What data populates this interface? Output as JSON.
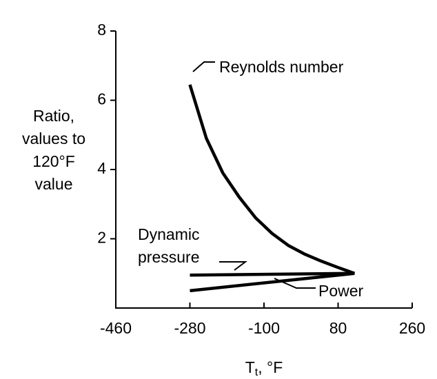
{
  "chart_data": {
    "type": "line",
    "y_label": [
      "Ratio,",
      "values to",
      "120°F",
      "value"
    ],
    "x_label": [
      "T",
      "t",
      ", °F"
    ],
    "xlim": [
      -460,
      260
    ],
    "xticks": [
      -460,
      -280,
      -100,
      80,
      260
    ],
    "ylim": [
      0,
      8
    ],
    "yticks": [
      2,
      4,
      6,
      8
    ],
    "series": [
      {
        "name": "Reynolds number",
        "color": "#000000",
        "x": [
          -280,
          -240,
          -200,
          -160,
          -120,
          -80,
          -40,
          0,
          40,
          80,
          120
        ],
        "values": [
          6.45,
          4.9,
          3.9,
          3.2,
          2.6,
          2.15,
          1.8,
          1.55,
          1.35,
          1.17,
          1.0
        ]
      },
      {
        "name": "Dynamic pressure",
        "color": "#000000",
        "x": [
          -280,
          120
        ],
        "values": [
          0.95,
          1.0
        ]
      },
      {
        "name": "Power",
        "color": "#000000",
        "x": [
          -280,
          120
        ],
        "values": [
          0.5,
          1.0
        ]
      }
    ]
  }
}
